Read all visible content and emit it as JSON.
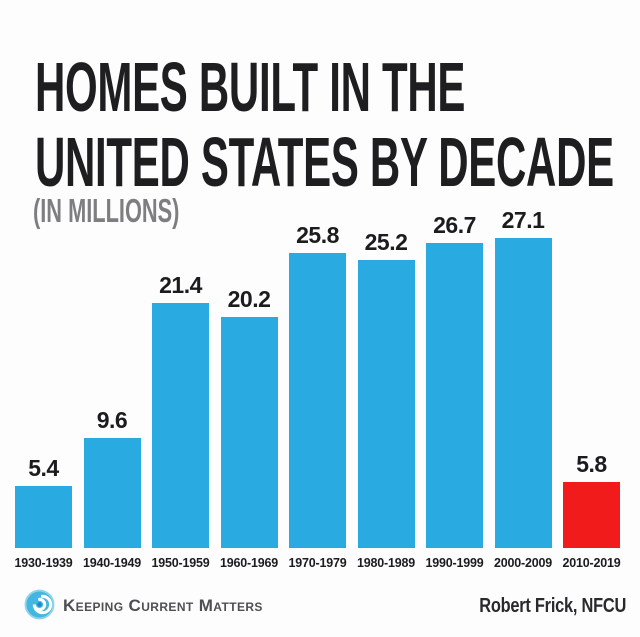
{
  "page": {
    "background": "#FDFDFD"
  },
  "header": {
    "title_line1": "HOMES BUILT IN THE",
    "title_line2": "UNITED STATES BY DECADE",
    "subtitle": "(IN MILLIONS)"
  },
  "chart_data": {
    "type": "bar",
    "title": "Homes Built in the United States by Decade",
    "subtitle": "(In Millions)",
    "units": "millions of homes",
    "categories": [
      "1930-1939",
      "1940-1949",
      "1950-1959",
      "1960-1969",
      "1970-1979",
      "1980-1989",
      "1990-1999",
      "2000-2009",
      "2010-2019"
    ],
    "values": [
      5.4,
      9.6,
      21.4,
      20.2,
      25.8,
      25.2,
      26.7,
      27.1,
      5.8
    ],
    "bar_color": "#29ABE2",
    "highlight_color": "#F21B1B",
    "highlight_index": 8,
    "ylim": [
      0,
      27.1
    ],
    "value_labels_shown": true,
    "grid": false,
    "legend": "none",
    "xlabel": "",
    "ylabel": ""
  },
  "footer": {
    "brand": "Keeping Current Matters",
    "logo": "kcm-swirl-logo",
    "logo_colors": {
      "circle": "#45B6E0",
      "ring": "#8ED4EE",
      "swirl": "#FFFFFF",
      "swirl_dark": "#1B86C8"
    },
    "attribution": "Robert Frick, NFCU"
  }
}
